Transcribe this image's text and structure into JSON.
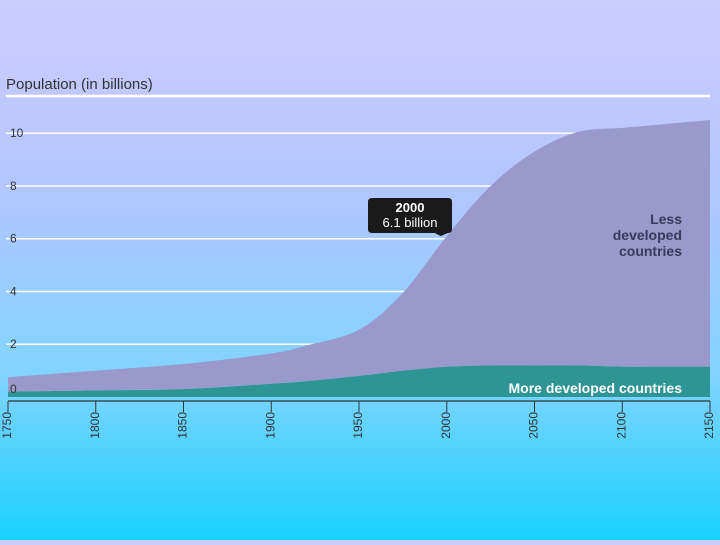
{
  "chart_data": {
    "type": "area",
    "stacked": true,
    "ylabel": "Population (in billions)",
    "xlabel": "",
    "xlim": [
      1750,
      2150
    ],
    "ylim": [
      0,
      10.5
    ],
    "x_ticks": [
      1750,
      1800,
      1850,
      1900,
      1950,
      2000,
      2050,
      2100,
      2150
    ],
    "y_ticks": [
      0,
      2,
      4,
      6,
      8,
      10
    ],
    "grid": true,
    "x": [
      1750,
      1800,
      1850,
      1900,
      1920,
      1950,
      1975,
      2000,
      2025,
      2050,
      2075,
      2100,
      2125,
      2150
    ],
    "series": [
      {
        "name": "More developed countries",
        "color": "#2e9494",
        "values": [
          0.2,
          0.25,
          0.3,
          0.5,
          0.6,
          0.8,
          1.0,
          1.15,
          1.2,
          1.2,
          1.2,
          1.15,
          1.15,
          1.15
        ]
      },
      {
        "name": "Less developed countries",
        "color": "#9999cc",
        "values": [
          0.55,
          0.75,
          0.95,
          1.15,
          1.35,
          1.75,
          2.95,
          4.95,
          6.8,
          8.1,
          8.85,
          9.05,
          9.2,
          9.35
        ]
      }
    ],
    "series_label_less": [
      "Less",
      "developed",
      "countries"
    ],
    "annotation": {
      "year_text": "2000",
      "value_text": "6.1 billion",
      "x": 2000,
      "y": 6.1
    }
  }
}
